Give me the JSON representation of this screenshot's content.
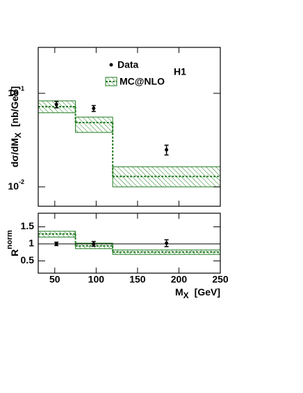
{
  "chart_data": [
    {
      "type": "errorbar_band",
      "log_y": true,
      "y_label": {
        "main": "dσ/dM",
        "sub": "X",
        "unit": "[nb/GeV]"
      },
      "annotation": "H1",
      "legend": "top",
      "xlim": [
        30,
        250
      ],
      "xticks": [
        50,
        100,
        150,
        200,
        250
      ],
      "ylim": [
        0.0062,
        0.31
      ],
      "yticks": [
        {
          "value": 0.1,
          "label": "10",
          "exponent": "-1"
        },
        {
          "value": 0.01,
          "label": "10",
          "exponent": "-2"
        }
      ],
      "data": {
        "name": "Data",
        "color": "#000000",
        "x": [
          52,
          97,
          185
        ],
        "values": [
          0.076,
          0.069,
          0.0249
        ],
        "errors": [
          0.006,
          0.005,
          0.003
        ]
      },
      "mc": {
        "name": "MC@NLO",
        "color": "#1f7a1f",
        "bins": [
          30,
          75,
          120,
          250
        ],
        "values": [
          0.072,
          0.0487,
          0.0129
        ],
        "upper": [
          0.083,
          0.0557,
          0.0164
        ],
        "lower": [
          0.062,
          0.0382,
          0.01
        ]
      }
    },
    {
      "type": "errorbar_band",
      "log_y": false,
      "y_label": {
        "main": "R",
        "sup": "norm"
      },
      "x_label": {
        "main": "M",
        "sub": "X",
        "unit": "[GeV]"
      },
      "xlim": [
        30,
        250
      ],
      "xticks": [
        50,
        100,
        150,
        200,
        250
      ],
      "ylim": [
        0.14,
        1.9
      ],
      "yticks": [
        0.5,
        1,
        1.5
      ],
      "reference": 1,
      "data": {
        "name": "Data",
        "color": "#000000",
        "x": [
          52,
          97,
          185
        ],
        "values": [
          1.0,
          1.0,
          1.02
        ],
        "errors": [
          0.05,
          0.07,
          0.1
        ]
      },
      "mc": {
        "name": "MC@NLO",
        "color": "#1f7a1f",
        "bins": [
          30,
          75,
          120,
          250
        ],
        "values": [
          1.29,
          0.94,
          0.76
        ],
        "upper": [
          1.37,
          1.02,
          0.82
        ],
        "lower": [
          1.2,
          0.86,
          0.69
        ]
      }
    }
  ]
}
